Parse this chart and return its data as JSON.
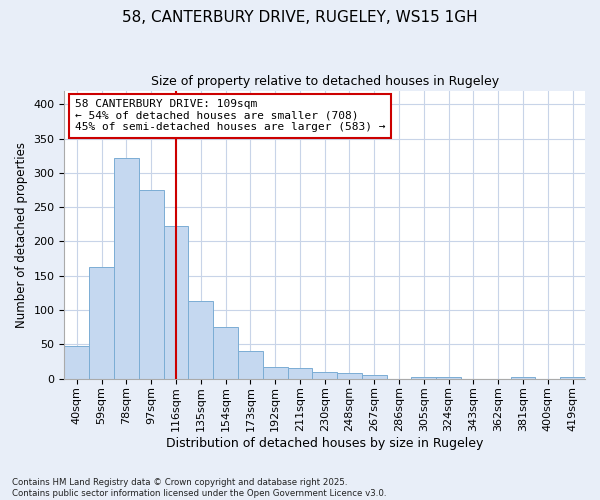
{
  "title": "58, CANTERBURY DRIVE, RUGELEY, WS15 1GH",
  "subtitle": "Size of property relative to detached houses in Rugeley",
  "xlabel": "Distribution of detached houses by size in Rugeley",
  "ylabel": "Number of detached properties",
  "bins": [
    "40sqm",
    "59sqm",
    "78sqm",
    "97sqm",
    "116sqm",
    "135sqm",
    "154sqm",
    "173sqm",
    "192sqm",
    "211sqm",
    "230sqm",
    "248sqm",
    "267sqm",
    "286sqm",
    "305sqm",
    "324sqm",
    "343sqm",
    "362sqm",
    "381sqm",
    "400sqm",
    "419sqm"
  ],
  "values": [
    48,
    163,
    322,
    275,
    223,
    113,
    75,
    40,
    17,
    15,
    10,
    8,
    5,
    0,
    3,
    2,
    0,
    0,
    3,
    0,
    2
  ],
  "bar_color": "#c5d8f0",
  "bar_edge_color": "#7badd4",
  "grid_color": "#c8d4e8",
  "background_color": "#ffffff",
  "fig_background_color": "#e8eef8",
  "property_line_x": 4.0,
  "property_line_color": "#cc0000",
  "annotation_line1": "58 CANTERBURY DRIVE: 109sqm",
  "annotation_line2": "← 54% of detached houses are smaller (708)",
  "annotation_line3": "45% of semi-detached houses are larger (583) →",
  "annotation_box_color": "#ffffff",
  "annotation_box_edge": "#cc0000",
  "footer": "Contains HM Land Registry data © Crown copyright and database right 2025.\nContains public sector information licensed under the Open Government Licence v3.0.",
  "ylim": [
    0,
    420
  ],
  "yticks": [
    0,
    50,
    100,
    150,
    200,
    250,
    300,
    350,
    400
  ]
}
